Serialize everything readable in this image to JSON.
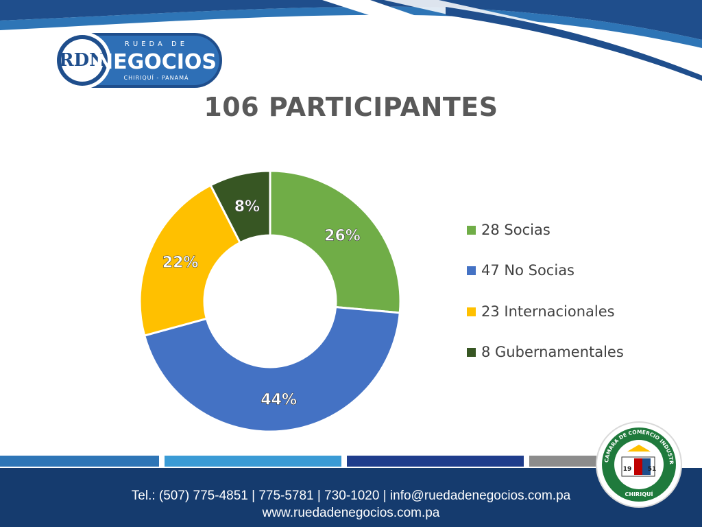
{
  "logo": {
    "brand_top": "RUEDA DE",
    "brand_main": "NEGOCIOS",
    "brand_sub": "CHIRIQUÍ - PANAMÁ",
    "monogram": "RDN"
  },
  "title": "106 PARTICIPANTES",
  "chart_data": {
    "type": "pie",
    "donut": true,
    "title": "106 PARTICIPANTES",
    "series": [
      {
        "name": "28 Socias",
        "value": 28,
        "label": "26%",
        "color": "#70ad47"
      },
      {
        "name": "47 No Socias",
        "value": 47,
        "label": "44%",
        "color": "#4472c4"
      },
      {
        "name": "23 Internacionales",
        "value": 23,
        "label": "22%",
        "color": "#ffc000"
      },
      {
        "name": "8 Gubernamentales",
        "value": 8,
        "label": "8%",
        "color": "#375623"
      }
    ],
    "legend": "right"
  },
  "footer": {
    "contact": "Tel.: (507) 775-4851 | 775-5781 | 730-1020 | info@ruedadenegocios.com.pa",
    "website": "www.ruedadenegocios.com.pa"
  },
  "seal": {
    "text": "CAMARA DE COMERCIO INDUSTRIAS Y AGRICULTURA",
    "place": "CHIRIQUÍ",
    "year_left": "19",
    "year_right": "51"
  },
  "colors": {
    "navy": "#153b6e",
    "blue": "#2e75b6",
    "light_blue": "#3a9bd5",
    "title_gray": "#595959"
  }
}
